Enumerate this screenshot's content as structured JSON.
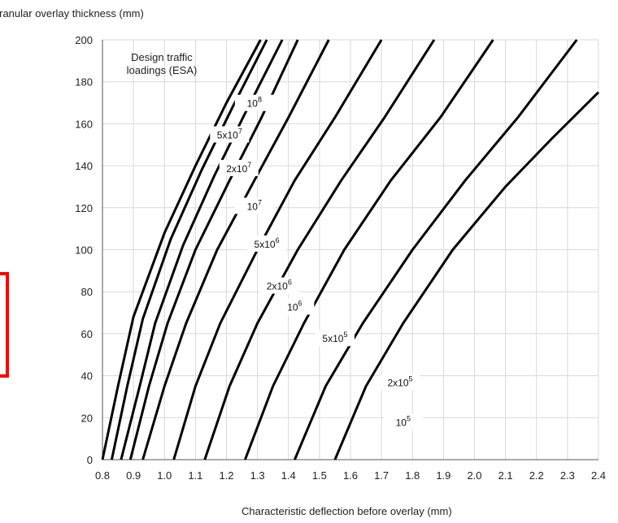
{
  "chart_data": {
    "type": "line",
    "title": "",
    "ylabel": "Granular overlay thickness (mm)",
    "xlabel": "Characteristic deflection before overlay (mm)",
    "xlim": [
      0.8,
      2.4
    ],
    "ylim": [
      0,
      200
    ],
    "x_ticks": [
      "0.8",
      "0.9",
      "1.0",
      "1.1",
      "1.2",
      "1.3",
      "1.4",
      "1.5",
      "1.6",
      "1.7",
      "1.8",
      "1.9",
      "2.0",
      "2.1",
      "2.2",
      "2.3",
      "2.4"
    ],
    "y_ticks": [
      "0",
      "20",
      "40",
      "60",
      "80",
      "100",
      "120",
      "140",
      "160",
      "180",
      "200"
    ],
    "grid": true,
    "legend_title": [
      "Design traffic",
      "loadings (ESA)"
    ],
    "series": [
      {
        "name": "10^8",
        "label_base": "10",
        "label_exp": "8",
        "label_at": [
          1.29,
          168
        ],
        "points": [
          [
            0.8,
            0
          ],
          [
            0.85,
            35
          ],
          [
            0.9,
            68
          ],
          [
            1.0,
            108
          ],
          [
            1.1,
            140
          ],
          [
            1.2,
            170
          ],
          [
            1.31,
            200
          ]
        ]
      },
      {
        "name": "5x10^7",
        "label_base": "5x10",
        "label_exp": "7",
        "label_at": [
          1.21,
          153
        ],
        "points": [
          [
            0.83,
            0
          ],
          [
            0.88,
            35
          ],
          [
            0.93,
            67
          ],
          [
            1.02,
            105
          ],
          [
            1.12,
            138
          ],
          [
            1.22,
            168
          ],
          [
            1.33,
            200
          ]
        ]
      },
      {
        "name": "2x10^7",
        "label_base": "2x10",
        "label_exp": "7",
        "label_at": [
          1.24,
          137
        ],
        "points": [
          [
            0.86,
            0
          ],
          [
            0.92,
            35
          ],
          [
            0.97,
            65
          ],
          [
            1.06,
            102
          ],
          [
            1.16,
            135
          ],
          [
            1.26,
            165
          ],
          [
            1.38,
            200
          ]
        ]
      },
      {
        "name": "10^7",
        "label_base": "10",
        "label_exp": "7",
        "label_at": [
          1.29,
          119
        ],
        "points": [
          [
            0.89,
            0
          ],
          [
            0.95,
            35
          ],
          [
            1.01,
            65
          ],
          [
            1.1,
            100
          ],
          [
            1.21,
            133
          ],
          [
            1.31,
            162
          ],
          [
            1.43,
            200
          ]
        ]
      },
      {
        "name": "5x10^6",
        "label_base": "5x10",
        "label_exp": "6",
        "label_at": [
          1.33,
          101
        ],
        "points": [
          [
            0.93,
            0
          ],
          [
            1.0,
            35
          ],
          [
            1.07,
            65
          ],
          [
            1.17,
            100
          ],
          [
            1.29,
            133
          ],
          [
            1.4,
            163
          ],
          [
            1.53,
            200
          ]
        ]
      },
      {
        "name": "2x10^6",
        "label_base": "2x10",
        "label_exp": "6",
        "label_at": [
          1.37,
          81
        ],
        "points": [
          [
            1.03,
            0
          ],
          [
            1.1,
            35
          ],
          [
            1.18,
            65
          ],
          [
            1.3,
            100
          ],
          [
            1.42,
            133
          ],
          [
            1.55,
            163
          ],
          [
            1.7,
            200
          ]
        ]
      },
      {
        "name": "10^6",
        "label_base": "10",
        "label_exp": "6",
        "label_at": [
          1.42,
          71
        ],
        "points": [
          [
            1.13,
            0
          ],
          [
            1.21,
            35
          ],
          [
            1.3,
            65
          ],
          [
            1.43,
            100
          ],
          [
            1.57,
            133
          ],
          [
            1.71,
            163
          ],
          [
            1.87,
            200
          ]
        ]
      },
      {
        "name": "5x10^5",
        "label_base": "5x10",
        "label_exp": "5",
        "label_at": [
          1.55,
          56
        ],
        "points": [
          [
            1.26,
            0
          ],
          [
            1.35,
            35
          ],
          [
            1.45,
            65
          ],
          [
            1.58,
            100
          ],
          [
            1.73,
            133
          ],
          [
            1.89,
            163
          ],
          [
            2.06,
            200
          ]
        ]
      },
      {
        "name": "2x10^5",
        "label_base": "2x10",
        "label_exp": "5",
        "label_at": [
          1.76,
          35
        ],
        "points": [
          [
            1.42,
            0
          ],
          [
            1.52,
            35
          ],
          [
            1.64,
            65
          ],
          [
            1.8,
            100
          ],
          [
            1.97,
            133
          ],
          [
            2.14,
            163
          ],
          [
            2.33,
            200
          ]
        ]
      },
      {
        "name": "10^5",
        "label_base": "10",
        "label_exp": "5",
        "label_at": [
          1.77,
          16
        ],
        "points": [
          [
            1.55,
            0
          ],
          [
            1.65,
            35
          ],
          [
            1.77,
            65
          ],
          [
            1.93,
            100
          ],
          [
            2.1,
            130
          ],
          [
            2.25,
            153
          ],
          [
            2.4,
            175
          ]
        ]
      }
    ]
  }
}
